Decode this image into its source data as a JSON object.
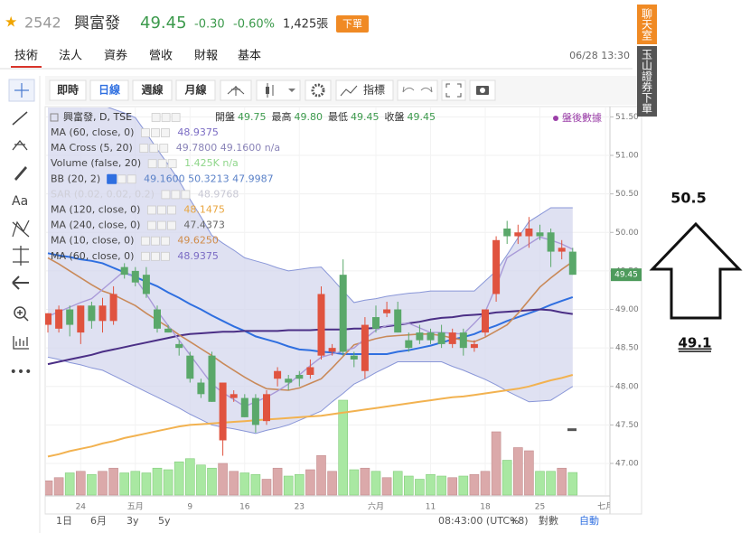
{
  "header": {
    "code": "2542",
    "name": "興富發",
    "price": "49.45",
    "change": "-0.30",
    "change_pct": "-0.60%",
    "volume": "1,425張",
    "order_button": "下單",
    "tabs": [
      "技術",
      "法人",
      "資券",
      "營收",
      "財報",
      "基本"
    ],
    "datetime": "06/28 13:30",
    "side_buttons": [
      "聊天室",
      "玉山證券下單"
    ]
  },
  "toolbar": {
    "buttons": [
      "即時",
      "日線",
      "週線",
      "月線"
    ],
    "indicator_button": "指標",
    "text_tool": "Aa"
  },
  "bottom_bar": {
    "ranges": [
      "1日",
      "6月",
      "3y",
      "5y"
    ],
    "time": "08:43:00 (UTC+8)",
    "options": [
      "%",
      "對數",
      "自動"
    ]
  },
  "annotations": {
    "target_high": "50.5",
    "target_low": "49.1"
  },
  "chart_data": {
    "type": "candlestick",
    "symbol_label": "興富發, D, TSE",
    "ohlc_summary": [
      {
        "label": "開盤",
        "value": "49.75"
      },
      {
        "label": "最高",
        "value": "49.80"
      },
      {
        "label": "最低",
        "value": "49.45"
      },
      {
        "label": "收盤",
        "value": "49.45"
      }
    ],
    "after_hours": "盤後數據",
    "indicators": [
      {
        "name": "MA (60, close, 0)",
        "value": "48.9375",
        "color": "#7b6cc4"
      },
      {
        "name": "MA Cross (5, 20)",
        "value": "49.7800 49.1600 n/a",
        "color": "#8a84b8"
      },
      {
        "name": "Volume (false, 20)",
        "value": "1.425K n/a",
        "color": "#8fd68a"
      },
      {
        "name": "BB (20, 2)",
        "value": "49.1600 50.3213 47.9987",
        "color": "#5b82c8"
      },
      {
        "name": "SAR (0.02, 0.02, 0.2)",
        "value": "48.9768",
        "color": "#c8c8d4"
      },
      {
        "name": "MA (120, close, 0)",
        "value": "48.1475",
        "color": "#e9a640"
      },
      {
        "name": "MA (240, close, 0)",
        "value": "47.4373",
        "color": "#666666"
      },
      {
        "name": "MA (10, close, 0)",
        "value": "49.6250",
        "color": "#d08c4a"
      },
      {
        "name": "MA (60, close, 0)",
        "value": "48.9375",
        "color": "#7b6cc4"
      }
    ],
    "categories": [
      null,
      null,
      null,
      "24",
      null,
      null,
      null,
      null,
      "五月",
      null,
      null,
      null,
      null,
      "9",
      null,
      null,
      null,
      null,
      "16",
      null,
      null,
      null,
      null,
      "23",
      null,
      null,
      null,
      null,
      null,
      null,
      "六月",
      null,
      null,
      null,
      null,
      "11",
      null,
      null,
      null,
      null,
      "18",
      null,
      null,
      null,
      null,
      "25",
      null,
      null,
      null,
      null,
      null,
      "七月"
    ],
    "open": [
      48.8,
      48.75,
      49.0,
      48.7,
      49.05,
      48.85,
      48.85,
      49.55,
      49.5,
      49.45,
      49.0,
      48.75,
      48.55,
      48.4,
      48.05,
      48.4,
      47.3,
      47.85,
      47.85,
      47.85,
      47.55,
      48.1,
      48.1,
      48.15,
      48.15,
      48.4,
      48.45,
      49.45,
      48.4,
      48.2,
      48.9,
      48.95,
      49.0,
      48.6,
      48.7,
      48.7,
      48.7,
      48.55,
      48.7,
      48.5,
      48.7,
      49.2,
      50.05,
      49.95,
      49.95,
      50.0,
      50.0,
      49.75,
      49.75,
      null,
      null,
      null
    ],
    "high": [
      48.95,
      49.05,
      49.05,
      49.05,
      49.1,
      49.15,
      49.3,
      49.6,
      49.55,
      49.55,
      49.05,
      48.8,
      48.6,
      48.45,
      48.1,
      48.45,
      48.05,
      47.95,
      47.9,
      47.9,
      47.95,
      48.25,
      48.15,
      48.2,
      48.35,
      49.3,
      48.55,
      49.65,
      48.45,
      48.9,
      49.05,
      49.1,
      49.1,
      48.7,
      48.8,
      48.75,
      48.8,
      48.75,
      48.75,
      48.6,
      49.0,
      49.95,
      50.15,
      50.1,
      50.2,
      50.1,
      50.05,
      49.9,
      49.8,
      null,
      null,
      null
    ],
    "low": [
      48.7,
      48.7,
      48.65,
      48.55,
      48.75,
      48.7,
      48.8,
      49.4,
      49.3,
      49.15,
      48.7,
      48.7,
      48.4,
      48.05,
      47.85,
      47.8,
      47.1,
      47.8,
      47.6,
      47.4,
      47.5,
      48.0,
      47.95,
      48.0,
      48.1,
      48.35,
      48.4,
      48.4,
      48.25,
      48.1,
      48.7,
      48.9,
      48.7,
      48.45,
      48.55,
      48.55,
      48.5,
      48.5,
      48.4,
      48.45,
      48.65,
      49.1,
      49.85,
      49.85,
      49.8,
      49.9,
      49.55,
      49.65,
      49.45,
      null,
      null,
      null
    ],
    "close": [
      48.95,
      49.0,
      48.8,
      49.05,
      48.85,
      49.05,
      49.2,
      49.45,
      49.35,
      49.2,
      48.75,
      48.7,
      48.5,
      48.1,
      47.9,
      47.8,
      48.05,
      47.9,
      47.6,
      47.5,
      47.9,
      48.2,
      48.05,
      48.1,
      48.25,
      49.2,
      48.5,
      48.45,
      48.35,
      48.8,
      48.75,
      49.0,
      48.7,
      48.5,
      48.6,
      48.6,
      48.55,
      48.7,
      48.5,
      48.55,
      49.0,
      49.9,
      49.95,
      50.0,
      50.05,
      49.95,
      49.75,
      49.8,
      49.45,
      null,
      null,
      null
    ],
    "volume": [
      900,
      1100,
      1400,
      1500,
      1300,
      1500,
      1700,
      1400,
      1500,
      1400,
      1700,
      1600,
      2100,
      2300,
      1900,
      1700,
      2000,
      1500,
      1400,
      1300,
      1000,
      1700,
      1200,
      1300,
      1600,
      2500,
      1500,
      6000,
      1600,
      1700,
      1500,
      1100,
      1500,
      1200,
      1000,
      1300,
      1200,
      1100,
      1200,
      1300,
      1500,
      4000,
      2200,
      3000,
      2800,
      1500,
      1500,
      1700,
      1425,
      null,
      null,
      null
    ],
    "up_color": "#e0533f",
    "down_color": "#5aa86a",
    "volume_up_color": "#dba9aa",
    "volume_down_color": "#a9e8a2",
    "ylim": [
      46.59,
      51.61
    ],
    "yticks": [
      {
        "value": 47,
        "label": "47.00"
      },
      {
        "value": 47.5,
        "label": "47.50"
      },
      {
        "value": 48,
        "label": "48.00"
      },
      {
        "value": 48.5,
        "label": "48.50"
      },
      {
        "value": 49,
        "label": "49.00"
      },
      {
        "value": 49.5,
        "label": "49.50"
      },
      {
        "value": 50,
        "label": "50.00"
      },
      {
        "value": 50.5,
        "label": "50.50"
      },
      {
        "value": 51,
        "label": "51.00"
      },
      {
        "value": 51.5,
        "label": "51.50"
      }
    ],
    "y2lim": [
      0,
      8000
    ],
    "grid": true,
    "bands": {
      "color": "#6f7fd0",
      "fill": "#d4d7ee",
      "upper": [
        51.9,
        51.85,
        51.8,
        51.75,
        51.7,
        51.65,
        51.6,
        51.55,
        51.49,
        51.29,
        51.08,
        50.88,
        50.67,
        50.43,
        50.2,
        49.96,
        49.86,
        49.77,
        49.67,
        49.63,
        49.59,
        49.54,
        49.5,
        49.52,
        49.54,
        49.55,
        49.4,
        49.24,
        49.09,
        49.12,
        49.14,
        49.17,
        49.19,
        49.21,
        49.22,
        49.24,
        49.24,
        49.24,
        49.24,
        49.24,
        49.37,
        49.5,
        49.71,
        49.93,
        50.14,
        50.23,
        50.32,
        50.32,
        50.32,
        null,
        null,
        null
      ],
      "lower": [
        48.38,
        48.35,
        48.31,
        48.28,
        48.24,
        48.21,
        48.14,
        48.07,
        48.0,
        47.93,
        47.86,
        47.79,
        47.72,
        47.64,
        47.57,
        47.5,
        47.47,
        47.45,
        47.42,
        47.39,
        47.43,
        47.46,
        47.5,
        47.56,
        47.62,
        47.68,
        47.8,
        47.91,
        48.03,
        48.1,
        48.18,
        48.25,
        48.32,
        48.32,
        48.32,
        48.32,
        48.32,
        48.26,
        48.21,
        48.15,
        48.09,
        48.02,
        47.94,
        47.87,
        47.8,
        47.81,
        47.82,
        47.91,
        48.0,
        null,
        null,
        null
      ]
    },
    "lines": [
      {
        "color": "#2f6fe0",
        "width": 2,
        "values": [
          49.73,
          49.7,
          49.68,
          49.65,
          49.63,
          49.6,
          49.54,
          49.48,
          49.42,
          49.36,
          49.3,
          49.22,
          49.15,
          49.07,
          49.0,
          48.92,
          48.85,
          48.78,
          48.72,
          48.65,
          48.61,
          48.57,
          48.52,
          48.48,
          48.47,
          48.45,
          48.44,
          48.42,
          48.42,
          48.42,
          48.42,
          48.42,
          48.45,
          48.47,
          48.5,
          48.53,
          48.57,
          48.61,
          48.64,
          48.68,
          48.74,
          48.79,
          48.85,
          48.9,
          48.95,
          49.0,
          49.06,
          49.11,
          49.16,
          null,
          null,
          null
        ]
      },
      {
        "color": "#4b2f86",
        "width": 2,
        "values": [
          48.29,
          48.32,
          48.35,
          48.38,
          48.41,
          48.45,
          48.48,
          48.51,
          48.54,
          48.57,
          48.6,
          48.63,
          48.66,
          48.68,
          48.69,
          48.7,
          48.71,
          48.71,
          48.72,
          48.72,
          48.72,
          48.72,
          48.73,
          48.73,
          48.73,
          48.74,
          48.74,
          48.74,
          48.75,
          48.75,
          48.76,
          48.78,
          48.8,
          48.82,
          48.84,
          48.87,
          48.89,
          48.9,
          48.92,
          48.93,
          48.94,
          48.96,
          48.97,
          48.98,
          48.99,
          49.0,
          48.99,
          48.96,
          48.94,
          null,
          null,
          null
        ]
      },
      {
        "color": "#f2b250",
        "width": 2,
        "values": [
          47.09,
          47.12,
          47.16,
          47.19,
          47.22,
          47.26,
          47.29,
          47.33,
          47.36,
          47.39,
          47.42,
          47.45,
          47.48,
          47.5,
          47.51,
          47.52,
          47.53,
          47.54,
          47.55,
          47.56,
          47.57,
          47.58,
          47.59,
          47.6,
          47.61,
          47.62,
          47.64,
          47.66,
          47.68,
          47.7,
          47.72,
          47.74,
          47.76,
          47.78,
          47.8,
          47.82,
          47.84,
          47.86,
          47.87,
          47.89,
          47.91,
          47.93,
          47.95,
          47.97,
          48.0,
          48.04,
          48.08,
          48.11,
          48.15,
          null,
          null,
          null
        ]
      },
      {
        "color": "#c98a5a",
        "width": 1.6,
        "values": [
          49.67,
          49.59,
          49.5,
          49.41,
          49.32,
          49.24,
          49.19,
          49.12,
          49.05,
          48.95,
          48.86,
          48.77,
          48.67,
          48.58,
          48.49,
          48.4,
          48.3,
          48.21,
          48.12,
          48.04,
          47.97,
          47.96,
          47.95,
          47.98,
          48.04,
          48.1,
          48.24,
          48.39,
          48.54,
          48.58,
          48.62,
          48.65,
          48.66,
          48.67,
          48.68,
          48.68,
          48.66,
          48.63,
          48.6,
          48.58,
          48.64,
          48.72,
          48.8,
          48.95,
          49.12,
          49.29,
          49.41,
          49.52,
          49.62,
          null,
          null,
          null
        ]
      },
      {
        "color": "#a99ad8",
        "width": 1.4,
        "values": [
          48.91,
          48.97,
          49.03,
          49.09,
          49.14,
          49.26,
          49.38,
          49.5,
          49.4,
          49.2,
          48.98,
          48.79,
          48.6,
          48.41,
          48.22,
          48.03,
          47.92,
          47.83,
          47.74,
          47.8,
          47.86,
          47.94,
          48.03,
          48.15,
          48.27,
          48.38,
          48.42,
          48.46,
          48.5,
          48.62,
          48.73,
          48.79,
          48.81,
          48.82,
          48.76,
          48.7,
          48.7,
          48.69,
          48.68,
          48.82,
          48.97,
          49.3,
          49.67,
          49.76,
          49.85,
          49.94,
          49.9,
          49.85,
          49.78,
          null,
          null,
          null
        ]
      }
    ]
  }
}
